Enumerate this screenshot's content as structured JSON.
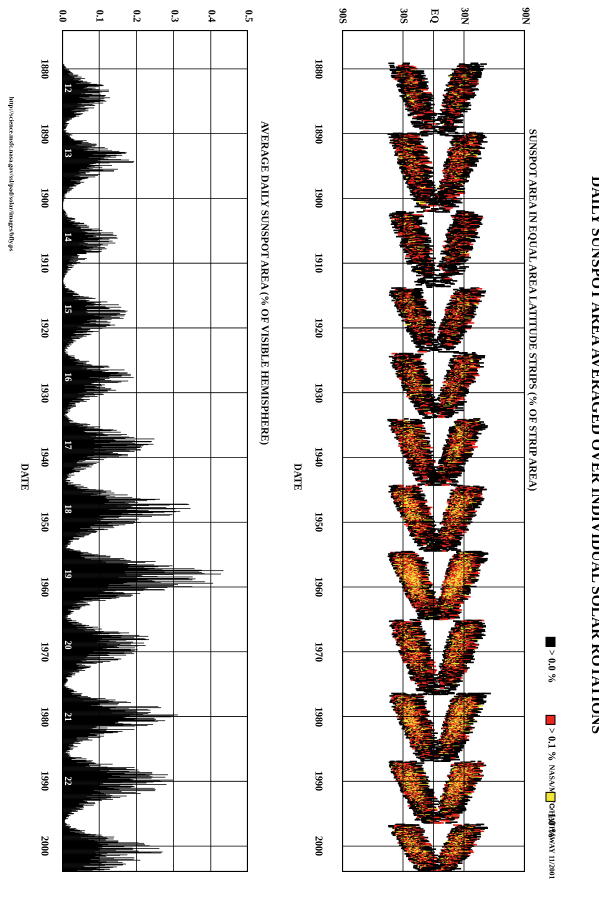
{
  "page": {
    "title": "DAILY SUNSPOT AREA AVERAGED OVER INDIVIDUAL SOLAR ROTATIONS",
    "credit": "NASA/MSFC/HATHAWAY  11/2001",
    "url": "http://science.msfc.nasa.gov/ssl/pad/solar/images/bfly.ps"
  },
  "legend": {
    "items": [
      {
        "label": "> 0.0 %",
        "color": "#000000"
      },
      {
        "label": "> 0.1 %",
        "color": "#e8281e"
      },
      {
        "label": "> 1.0 %",
        "color": "#f2e63a"
      }
    ]
  },
  "chart_data": [
    {
      "type": "heatmap",
      "title": "SUNSPOT AREA IN EQUAL AREA LATITUDE STRIPS (% OF STRIP AREA)",
      "xlabel": "DATE",
      "ylabel": "",
      "xlim": [
        1874,
        2004
      ],
      "ylim": [
        -90,
        90
      ],
      "x_ticks": [
        1880,
        1890,
        1900,
        1910,
        1920,
        1930,
        1940,
        1950,
        1960,
        1970,
        1980,
        1990,
        2000
      ],
      "y_ticks": [
        {
          "value": -90,
          "label": "90S"
        },
        {
          "value": -30,
          "label": "30S"
        },
        {
          "value": 0,
          "label": "EQ"
        },
        {
          "value": 30,
          "label": "30N"
        },
        {
          "value": 90,
          "label": "90N"
        }
      ],
      "cycles": [
        {
          "start": 1878.9,
          "max": 1884.0,
          "end": 1890.2,
          "strength": 0.55
        },
        {
          "start": 1889.6,
          "max": 1894.1,
          "end": 1902.0,
          "strength": 0.75
        },
        {
          "start": 1901.7,
          "max": 1906.2,
          "end": 1913.6,
          "strength": 0.55
        },
        {
          "start": 1913.6,
          "max": 1917.6,
          "end": 1923.6,
          "strength": 0.8
        },
        {
          "start": 1923.6,
          "max": 1928.4,
          "end": 1933.8,
          "strength": 0.8
        },
        {
          "start": 1933.8,
          "max": 1937.4,
          "end": 1944.2,
          "strength": 1.0
        },
        {
          "start": 1944.1,
          "max": 1947.5,
          "end": 1954.3,
          "strength": 1.2
        },
        {
          "start": 1954.3,
          "max": 1958.2,
          "end": 1964.9,
          "strength": 1.5
        },
        {
          "start": 1964.8,
          "max": 1968.9,
          "end": 1976.5,
          "strength": 1.0
        },
        {
          "start": 1976.2,
          "max": 1979.9,
          "end": 1986.8,
          "strength": 1.3
        },
        {
          "start": 1986.7,
          "max": 1989.6,
          "end": 1996.4,
          "strength": 1.3
        },
        {
          "start": 1996.4,
          "max": 2000.3,
          "end": 2004.0,
          "strength": 1.1
        }
      ],
      "legend_placement": "right"
    },
    {
      "type": "bar",
      "title": "AVERAGE DAILY SUNSPOT AREA (% OF VISIBLE HEMISPHERE)",
      "xlabel": "DATE",
      "ylabel": "",
      "xlim": [
        1874,
        2004
      ],
      "ylim": [
        0.0,
        0.5
      ],
      "x_ticks": [
        1880,
        1890,
        1900,
        1910,
        1920,
        1930,
        1940,
        1950,
        1960,
        1970,
        1980,
        1990,
        2000
      ],
      "y_ticks": [
        0.0,
        0.1,
        0.2,
        0.3,
        0.4,
        0.5
      ],
      "y_tick_labels": [
        "0.0",
        "0.1",
        "0.2",
        "0.3",
        "0.4",
        "0.5"
      ],
      "cycle_peaks": [
        {
          "year": 1883.5,
          "value": 0.13
        },
        {
          "year": 1893.5,
          "value": 0.19
        },
        {
          "year": 1906.0,
          "value": 0.14
        },
        {
          "year": 1917.5,
          "value": 0.18
        },
        {
          "year": 1927.5,
          "value": 0.19
        },
        {
          "year": 1937.5,
          "value": 0.24
        },
        {
          "year": 1947.5,
          "value": 0.33
        },
        {
          "year": 1957.9,
          "value": 0.44
        },
        {
          "year": 1968.5,
          "value": 0.25
        },
        {
          "year": 1979.5,
          "value": 0.29
        },
        {
          "year": 1989.5,
          "value": 0.3
        },
        {
          "year": 2000.5,
          "value": 0.25
        }
      ],
      "cycle_numbers": [
        {
          "label": "12",
          "year": 1883
        },
        {
          "label": "13",
          "year": 1893
        },
        {
          "label": "14",
          "year": 1906
        },
        {
          "label": "15",
          "year": 1917
        },
        {
          "label": "16",
          "year": 1927.5
        },
        {
          "label": "17",
          "year": 1938
        },
        {
          "label": "18",
          "year": 1948
        },
        {
          "label": "19",
          "year": 1958
        },
        {
          "label": "20",
          "year": 1969
        },
        {
          "label": "21",
          "year": 1980
        },
        {
          "label": "22",
          "year": 1990
        }
      ]
    }
  ]
}
